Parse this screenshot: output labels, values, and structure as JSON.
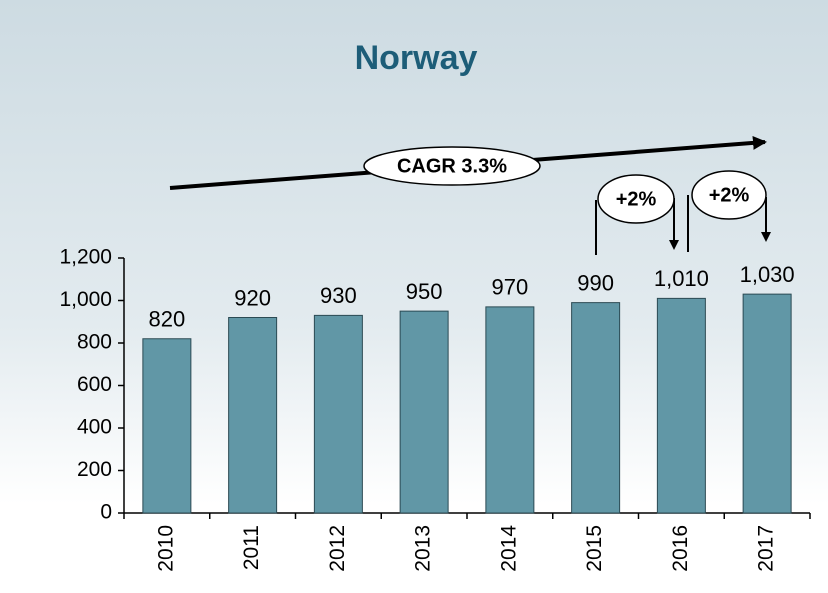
{
  "chart_data": {
    "type": "bar",
    "title": "Norway",
    "categories": [
      "2010",
      "2011",
      "2012",
      "2013",
      "2014",
      "2015",
      "2016",
      "2017"
    ],
    "values": [
      820,
      920,
      930,
      950,
      970,
      990,
      1010,
      1030
    ],
    "value_labels": [
      "820",
      "920",
      "930",
      "950",
      "970",
      "990",
      "1,010",
      "1,030"
    ],
    "color": "#6197a6",
    "ylim": [
      0,
      1200
    ],
    "yticks": [
      0,
      200,
      400,
      600,
      800,
      {
        "value": 1000,
        "label": "1,000"
      },
      {
        "value": 1200,
        "label": "1,200"
      }
    ],
    "annotations": [
      "CAGR 3.3%",
      "+2%",
      "+2%"
    ]
  }
}
